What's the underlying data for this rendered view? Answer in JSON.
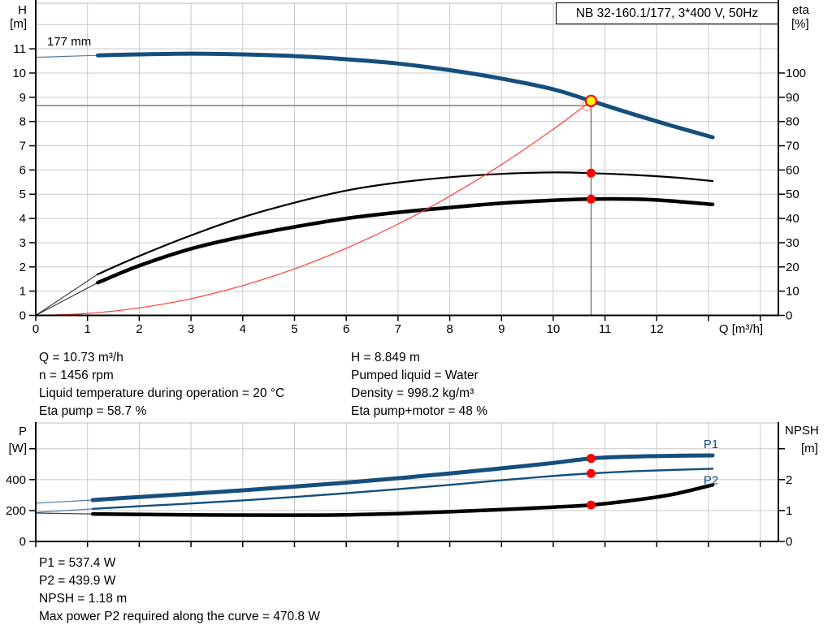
{
  "title_box": {
    "label": "NB 32-160.1/177, 3*400 V, 50Hz"
  },
  "colors": {
    "curve_blue": "#164f7e",
    "curve_black": "#000000",
    "system_red": "#ff3b30",
    "marker_red": "#ff0000",
    "duty_yellow": "#ffff00",
    "grid": "#c9c9c9",
    "frame_gray": "#bdbdbd",
    "guide_gray": "#9b9b9b",
    "guide_dark": "#4a4a4a",
    "axis": "#000000"
  },
  "mid_text": {
    "left": [
      "Q = 10.73 m³/h",
      "n = 1456 rpm",
      "Liquid temperature during operation = 20 °C",
      "Eta pump = 58.7 %"
    ],
    "right": [
      "H = 8.849 m",
      "Pumped liquid = Water",
      "Density = 998.2 kg/m³",
      "Eta pump+motor = 48 %"
    ]
  },
  "bottom_text": [
    "P1 = 537.4 W",
    "P2 = 439.9 W",
    "NPSH = 1.18 m",
    "Max power P2 required along the curve = 470.8 W"
  ],
  "chart_data": [
    {
      "id": "head",
      "type": "line",
      "title": "NB 32-160.1/177, 3*400 V, 50Hz",
      "xlabel": "Q [m³/h]",
      "ylabel_left": [
        "H",
        "[m]"
      ],
      "ylabel_right": [
        "eta",
        "[%]"
      ],
      "xlim": [
        0,
        14.35
      ],
      "ylim_left": [
        0,
        12.9
      ],
      "ylim_right": [
        0,
        129
      ],
      "grid_x": [
        1,
        2,
        3,
        4,
        5,
        6,
        7,
        8,
        9,
        10,
        11,
        12,
        13,
        14
      ],
      "grid_y": {
        "axis": "right",
        "values": [
          10,
          20,
          30,
          40,
          50,
          60,
          70,
          80,
          90,
          100,
          110,
          120
        ]
      },
      "x_ticks": [
        0,
        1,
        2,
        3,
        4,
        5,
        6,
        7,
        8,
        9,
        10,
        11,
        12,
        13,
        14
      ],
      "x_tick_labels": [
        "0",
        "1",
        "2",
        "3",
        "4",
        "5",
        "6",
        "7",
        "8",
        "9",
        "10",
        "11",
        "12",
        "",
        ""
      ],
      "left_ticks": [
        0,
        1,
        2,
        3,
        4,
        5,
        6,
        7,
        8,
        9,
        10,
        11
      ],
      "left_tick_labels": [
        "0",
        "1",
        "2",
        "3",
        "4",
        "5",
        "6",
        "7",
        "8",
        "9",
        "10",
        "11"
      ],
      "right_ticks": [
        0,
        10,
        20,
        30,
        40,
        50,
        60,
        70,
        80,
        90,
        100
      ],
      "right_tick_labels": [
        "0",
        "10",
        "20",
        "30",
        "40",
        "50",
        "60",
        "70",
        "80",
        "90",
        "100"
      ],
      "impeller_label": {
        "text": "177 mm",
        "q": 0.22,
        "v": 11.13
      },
      "series": [
        {
          "name": "eta-pump-curve",
          "axis": "right",
          "color": "#000000",
          "width": 2.2,
          "thin_until": 1.2,
          "points": [
            [
              0,
              0
            ],
            [
              1.2,
              17
            ],
            [
              2,
              24.5
            ],
            [
              3,
              33
            ],
            [
              4,
              40.5
            ],
            [
              5,
              46.5
            ],
            [
              6,
              51.5
            ],
            [
              7,
              54.8
            ],
            [
              8,
              57
            ],
            [
              9,
              58.4
            ],
            [
              10,
              59
            ],
            [
              10.73,
              58.7
            ],
            [
              11.7,
              57.8
            ],
            [
              12.4,
              56.8
            ],
            [
              13.08,
              55.4
            ]
          ]
        },
        {
          "name": "eta-pump-motor-curve",
          "axis": "right",
          "color": "#000000",
          "width": 4.5,
          "thin_until": 1.2,
          "points": [
            [
              0,
              0
            ],
            [
              1.2,
              13.5
            ],
            [
              2,
              20.5
            ],
            [
              3,
              27.5
            ],
            [
              4,
              32.5
            ],
            [
              5,
              36.5
            ],
            [
              6,
              40
            ],
            [
              7,
              42.5
            ],
            [
              8,
              44.5
            ],
            [
              9,
              46.3
            ],
            [
              10,
              47.5
            ],
            [
              10.73,
              48
            ],
            [
              11.7,
              47.9
            ],
            [
              12.4,
              47
            ],
            [
              13.08,
              45.8
            ]
          ]
        },
        {
          "name": "system-curve",
          "axis": "left",
          "color": "#ff3b30",
          "width": 1.2,
          "thin_until": null,
          "points": [
            [
              0,
              0
            ],
            [
              1,
              0.08
            ],
            [
              2,
              0.31
            ],
            [
              3,
              0.69
            ],
            [
              4,
              1.23
            ],
            [
              5,
              1.92
            ],
            [
              6,
              2.77
            ],
            [
              7,
              3.77
            ],
            [
              8,
              4.92
            ],
            [
              9,
              6.22
            ],
            [
              10,
              7.68
            ],
            [
              10.4,
              8.31
            ],
            [
              10.73,
              8.849
            ]
          ]
        },
        {
          "name": "head-curve",
          "axis": "left",
          "color": "#164f7e",
          "width": 5,
          "thin_until": 1.2,
          "points": [
            [
              0,
              10.65
            ],
            [
              0.6,
              10.69
            ],
            [
              1.2,
              10.73
            ],
            [
              2,
              10.77
            ],
            [
              3,
              10.8
            ],
            [
              4,
              10.77
            ],
            [
              5,
              10.7
            ],
            [
              6,
              10.57
            ],
            [
              7,
              10.39
            ],
            [
              8,
              10.12
            ],
            [
              9,
              9.77
            ],
            [
              10,
              9.33
            ],
            [
              10.73,
              8.849
            ],
            [
              11.5,
              8.33
            ],
            [
              12.3,
              7.82
            ],
            [
              13.08,
              7.35
            ]
          ]
        }
      ],
      "guides": {
        "vertical_q": 10.73,
        "horizontal_v": 8.66,
        "horizontal_axis": "left",
        "horizontal_until_q": 10.65
      },
      "markers": [
        {
          "name": "requested-duty-marker",
          "style": "open",
          "q": 10.65,
          "v": 8.66,
          "axis": "left"
        },
        {
          "name": "eta-pump-marker",
          "style": "dot",
          "q": 10.73,
          "v": 58.7,
          "axis": "right"
        },
        {
          "name": "eta-pump-motor-marker",
          "style": "dot",
          "q": 10.73,
          "v": 48,
          "axis": "right"
        },
        {
          "name": "duty-point-marker",
          "style": "duty",
          "q": 10.73,
          "v": 8.849,
          "axis": "left"
        }
      ],
      "duty_point": {
        "q": 10.73,
        "h": 8.849,
        "eta_pump": 58.7,
        "eta_pump_motor": 48
      }
    },
    {
      "id": "power",
      "type": "line",
      "xlabel": "",
      "ylabel_left": [
        "P",
        "[W]"
      ],
      "ylabel_right": [
        "NPSH",
        "[m]"
      ],
      "xlim": [
        0,
        14.35
      ],
      "ylim_left": [
        0,
        770
      ],
      "ylim_right": [
        0,
        3.85
      ],
      "grid_x": [
        1,
        2,
        3,
        4,
        5,
        6,
        7,
        8,
        9,
        10,
        11,
        12,
        13,
        14
      ],
      "grid_y": {
        "axis": "left",
        "values": [
          200,
          400,
          600
        ]
      },
      "x_ticks": [
        0,
        1,
        2,
        3,
        4,
        5,
        6,
        7,
        8,
        9,
        10,
        11,
        12,
        13,
        14
      ],
      "x_tick_labels": [
        "",
        "",
        "",
        "",
        "",
        "",
        "",
        "",
        "",
        "",
        "",
        "",
        "",
        "",
        ""
      ],
      "left_ticks": [
        0,
        200,
        400,
        600
      ],
      "left_tick_labels": [
        "0",
        "200",
        "400",
        ""
      ],
      "right_ticks": [
        0,
        1,
        2,
        3
      ],
      "right_tick_labels": [
        "0",
        "1",
        "2",
        ""
      ],
      "series": [
        {
          "name": "npsh-curve",
          "axis": "right",
          "color": "#000000",
          "width": 4.5,
          "thin_until": 1.1,
          "points": [
            [
              0,
              0.92
            ],
            [
              1.1,
              0.89
            ],
            [
              3,
              0.86
            ],
            [
              5,
              0.85
            ],
            [
              6,
              0.86
            ],
            [
              7,
              0.9
            ],
            [
              8,
              0.96
            ],
            [
              9,
              1.03
            ],
            [
              10,
              1.11
            ],
            [
              10.73,
              1.18
            ],
            [
              11.5,
              1.32
            ],
            [
              12.3,
              1.52
            ],
            [
              13.08,
              1.83
            ]
          ]
        },
        {
          "name": "p2-curve",
          "axis": "left",
          "color": "#164f7e",
          "width": 2.4,
          "thin_until": 1.1,
          "end_label": {
            "text": "P2",
            "dy": 19,
            "dx": -2
          },
          "points": [
            [
              0,
              188
            ],
            [
              1.1,
              211
            ],
            [
              2,
              228
            ],
            [
              3,
              246
            ],
            [
              4,
              266
            ],
            [
              5,
              288
            ],
            [
              6,
              312
            ],
            [
              7,
              338
            ],
            [
              8,
              366
            ],
            [
              9,
              396
            ],
            [
              10,
              424
            ],
            [
              10.73,
              439.9
            ],
            [
              11.7,
              456
            ],
            [
              13.08,
              470.8
            ]
          ]
        },
        {
          "name": "p1-curve",
          "axis": "left",
          "color": "#164f7e",
          "width": 5,
          "thin_until": 1.1,
          "end_label": {
            "text": "P1",
            "dy": -9,
            "dx": -2
          },
          "points": [
            [
              0,
              248
            ],
            [
              1.1,
              268
            ],
            [
              2,
              288
            ],
            [
              3,
              309
            ],
            [
              4,
              331
            ],
            [
              5,
              355
            ],
            [
              6,
              381
            ],
            [
              7,
              409
            ],
            [
              8,
              440
            ],
            [
              9,
              473
            ],
            [
              10,
              508
            ],
            [
              10.73,
              537.4
            ],
            [
              11.5,
              549
            ],
            [
              12.3,
              554
            ],
            [
              13.08,
              557
            ]
          ]
        }
      ],
      "guides": null,
      "markers": [
        {
          "name": "p1-marker",
          "style": "dot",
          "q": 10.73,
          "v": 537.4,
          "axis": "left"
        },
        {
          "name": "p2-marker",
          "style": "dot",
          "q": 10.73,
          "v": 439.9,
          "axis": "left"
        },
        {
          "name": "npsh-marker",
          "style": "dot",
          "q": 10.73,
          "v": 1.18,
          "axis": "right"
        }
      ],
      "duty_point": {
        "q": 10.73,
        "p1": 537.4,
        "p2": 439.9,
        "npsh": 1.18
      }
    }
  ]
}
